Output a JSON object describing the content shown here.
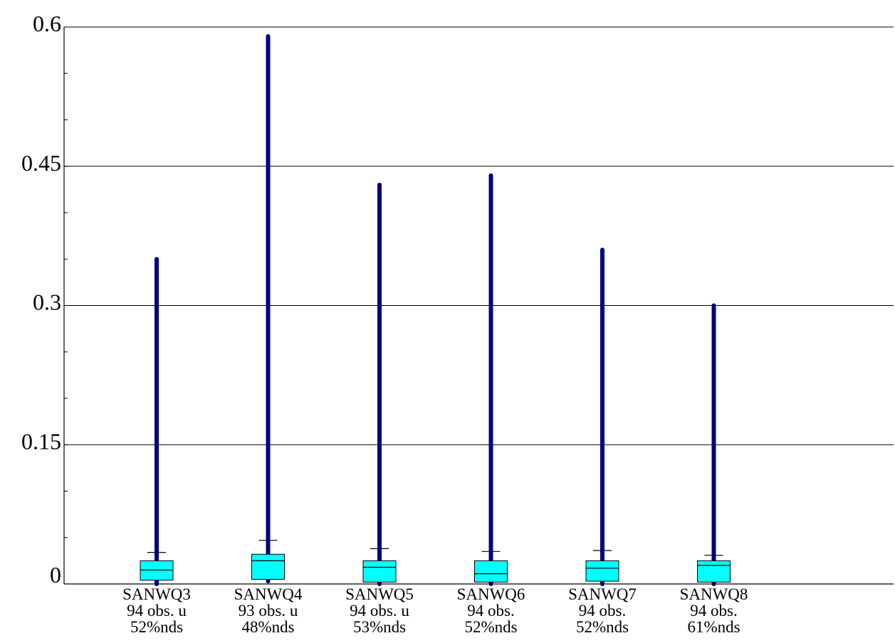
{
  "chart_data": {
    "type": "box",
    "title": "",
    "xlabel": "",
    "ylabel": "",
    "ylim": [
      0,
      0.6
    ],
    "yticks": [
      0,
      0.15,
      0.3,
      0.45,
      0.6
    ],
    "ytick_labels": [
      "0",
      "0.15",
      "0.3",
      "0.45",
      "0.6"
    ],
    "grid": "horizontal",
    "colors": {
      "box_fill": "#00ffff",
      "whisker": "#000080",
      "grid": "#000000"
    },
    "categories": [
      {
        "name": "SANWQ3",
        "obs": "94 obs. u",
        "nds": "52%nds",
        "min": 0.0,
        "q1": 0.004,
        "median": 0.015,
        "q3": 0.025,
        "upper_cap": 0.034,
        "max": 0.35
      },
      {
        "name": "SANWQ4",
        "obs": "93 obs. u",
        "nds": "48%nds",
        "min": 0.003,
        "q1": 0.005,
        "median": 0.025,
        "q3": 0.032,
        "upper_cap": 0.047,
        "max": 0.59
      },
      {
        "name": "SANWQ5",
        "obs": "94 obs. u",
        "nds": "53%nds",
        "min": 0.0,
        "q1": 0.002,
        "median": 0.018,
        "q3": 0.025,
        "upper_cap": 0.038,
        "max": 0.43
      },
      {
        "name": "SANWQ6",
        "obs": "94 obs.",
        "nds": "52%nds",
        "min": 0.0,
        "q1": 0.002,
        "median": 0.011,
        "q3": 0.025,
        "upper_cap": 0.035,
        "max": 0.44
      },
      {
        "name": "SANWQ7",
        "obs": "94 obs.",
        "nds": "52%nds",
        "min": 0.0,
        "q1": 0.003,
        "median": 0.017,
        "q3": 0.025,
        "upper_cap": 0.036,
        "max": 0.36
      },
      {
        "name": "SANWQ8",
        "obs": "94 obs.",
        "nds": "61%nds",
        "min": 0.0,
        "q1": 0.002,
        "median": 0.02,
        "q3": 0.025,
        "upper_cap": 0.031,
        "max": 0.3
      }
    ]
  }
}
